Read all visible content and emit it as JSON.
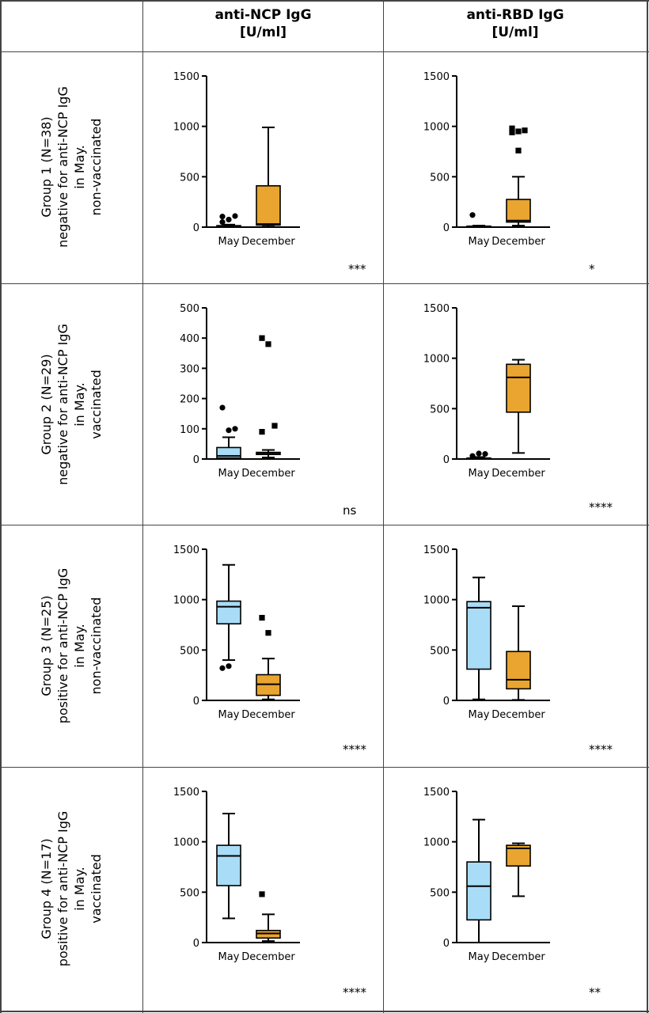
{
  "columns": [
    {
      "line1": "anti-NCP IgG",
      "line2": "[U/ml]"
    },
    {
      "line1": "anti-RBD IgG",
      "line2": "[U/ml]"
    }
  ],
  "rows": [
    {
      "line1": "Group 1 (N=38)",
      "line2": "negative for anti-NCP IgG",
      "line3": "in May.",
      "line4": "non-vaccinated"
    },
    {
      "line1": "Group 2 (N=29)",
      "line2": "negative for anti-NCP IgG",
      "line3": "in May.",
      "line4": "vaccinated"
    },
    {
      "line1": "Group 3 (N=25)",
      "line2": "positive for anti-NCP IgG",
      "line3": "in May.",
      "line4": "non-vaccinated"
    },
    {
      "line1": "Group 4 (N=17)",
      "line2": "positive for anti-NCP IgG",
      "line3": "in May.",
      "line4": "vaccinated"
    }
  ],
  "colors": {
    "may": "#a9dcf6",
    "december": "#e9a530",
    "stroke": "#000000"
  },
  "chart_data": [
    {
      "type": "box",
      "group": "Group 1 (N=38)",
      "measure": "anti-NCP IgG [U/ml]",
      "ylim": [
        0,
        1500
      ],
      "yticks": [
        0,
        500,
        1000,
        1500
      ],
      "categories": [
        "May",
        "December"
      ],
      "significance": "***",
      "boxes": [
        {
          "min": 0,
          "q1": 3,
          "median": 8,
          "q3": 15,
          "max": 25,
          "outliers": [
            50,
            75,
            110,
            105
          ],
          "outlier_marker": "circle"
        },
        {
          "min": 5,
          "q1": 20,
          "median": 30,
          "q3": 410,
          "max": 990,
          "outliers": [],
          "outlier_marker": "square"
        }
      ]
    },
    {
      "type": "box",
      "group": "Group 1 (N=38)",
      "measure": "anti-RBD IgG [U/ml]",
      "ylim": [
        0,
        1500
      ],
      "yticks": [
        0,
        500,
        1000,
        1500
      ],
      "categories": [
        "May",
        "December"
      ],
      "significance": "*",
      "boxes": [
        {
          "min": 0,
          "q1": 2,
          "median": 5,
          "q3": 10,
          "max": 15,
          "outliers": [
            120
          ],
          "outlier_marker": "circle"
        },
        {
          "min": 15,
          "q1": 50,
          "median": 65,
          "q3": 275,
          "max": 500,
          "outliers": [
            980,
            950,
            960,
            940,
            760
          ],
          "outlier_marker": "square"
        }
      ]
    },
    {
      "type": "box",
      "group": "Group 2 (N=29)",
      "measure": "anti-NCP IgG [U/ml]",
      "ylim": [
        0,
        500
      ],
      "yticks": [
        0,
        100,
        200,
        300,
        400,
        500
      ],
      "categories": [
        "May",
        "December"
      ],
      "significance": "ns",
      "boxes": [
        {
          "min": 0,
          "q1": 3,
          "median": 10,
          "q3": 38,
          "max": 72,
          "outliers": [
            170,
            95,
            100
          ],
          "outlier_marker": "circle"
        },
        {
          "min": 5,
          "q1": 15,
          "median": 20,
          "q3": 22,
          "max": 30,
          "outliers": [
            400,
            380,
            110,
            90
          ],
          "outlier_marker": "square"
        }
      ]
    },
    {
      "type": "box",
      "group": "Group 2 (N=29)",
      "measure": "anti-RBD IgG [U/ml]",
      "ylim": [
        0,
        1500
      ],
      "yticks": [
        0,
        500,
        1000,
        1500
      ],
      "categories": [
        "May",
        "December"
      ],
      "significance": "****",
      "boxes": [
        {
          "min": 0,
          "q1": 2,
          "median": 5,
          "q3": 10,
          "max": 20,
          "outliers": [
            30,
            55,
            50
          ],
          "outlier_marker": "circle"
        },
        {
          "min": 60,
          "q1": 465,
          "median": 810,
          "q3": 940,
          "max": 985,
          "outliers": [],
          "outlier_marker": "square"
        }
      ]
    },
    {
      "type": "box",
      "group": "Group 3 (N=25)",
      "measure": "anti-NCP IgG [U/ml]",
      "ylim": [
        0,
        1500
      ],
      "yticks": [
        0,
        500,
        1000,
        1500
      ],
      "categories": [
        "May",
        "December"
      ],
      "significance": "****",
      "boxes": [
        {
          "min": 400,
          "q1": 760,
          "median": 930,
          "q3": 985,
          "max": 1345,
          "outliers": [
            320,
            340
          ],
          "outlier_marker": "circle"
        },
        {
          "min": 10,
          "q1": 50,
          "median": 160,
          "q3": 255,
          "max": 415,
          "outliers": [
            820,
            670
          ],
          "outlier_marker": "square"
        }
      ]
    },
    {
      "type": "box",
      "group": "Group 3 (N=25)",
      "measure": "anti-RBD IgG [U/ml]",
      "ylim": [
        0,
        1500
      ],
      "yticks": [
        0,
        500,
        1000,
        1500
      ],
      "categories": [
        "May",
        "December"
      ],
      "significance": "****",
      "boxes": [
        {
          "min": 10,
          "q1": 310,
          "median": 920,
          "q3": 980,
          "max": 1220,
          "outliers": [],
          "outlier_marker": "circle"
        },
        {
          "min": 5,
          "q1": 115,
          "median": 205,
          "q3": 485,
          "max": 935,
          "outliers": [],
          "outlier_marker": "square"
        }
      ]
    },
    {
      "type": "box",
      "group": "Group 4 (N=17)",
      "measure": "anti-NCP IgG [U/ml]",
      "ylim": [
        0,
        1500
      ],
      "yticks": [
        0,
        500,
        1000,
        1500
      ],
      "categories": [
        "May",
        "December"
      ],
      "significance": "****",
      "boxes": [
        {
          "min": 240,
          "q1": 565,
          "median": 860,
          "q3": 965,
          "max": 1280,
          "outliers": [],
          "outlier_marker": "circle"
        },
        {
          "min": 15,
          "q1": 45,
          "median": 90,
          "q3": 120,
          "max": 280,
          "outliers": [
            480
          ],
          "outlier_marker": "square"
        }
      ]
    },
    {
      "type": "box",
      "group": "Group 4 (N=17)",
      "measure": "anti-RBD IgG [U/ml]",
      "ylim": [
        0,
        1500
      ],
      "yticks": [
        0,
        500,
        1000,
        1500
      ],
      "categories": [
        "May",
        "December"
      ],
      "significance": "**",
      "boxes": [
        {
          "min": 0,
          "q1": 225,
          "median": 560,
          "q3": 800,
          "max": 1220,
          "outliers": [],
          "outlier_marker": "circle"
        },
        {
          "min": 460,
          "q1": 760,
          "median": 935,
          "q3": 965,
          "max": 985,
          "outliers": [],
          "outlier_marker": "square"
        }
      ]
    }
  ]
}
